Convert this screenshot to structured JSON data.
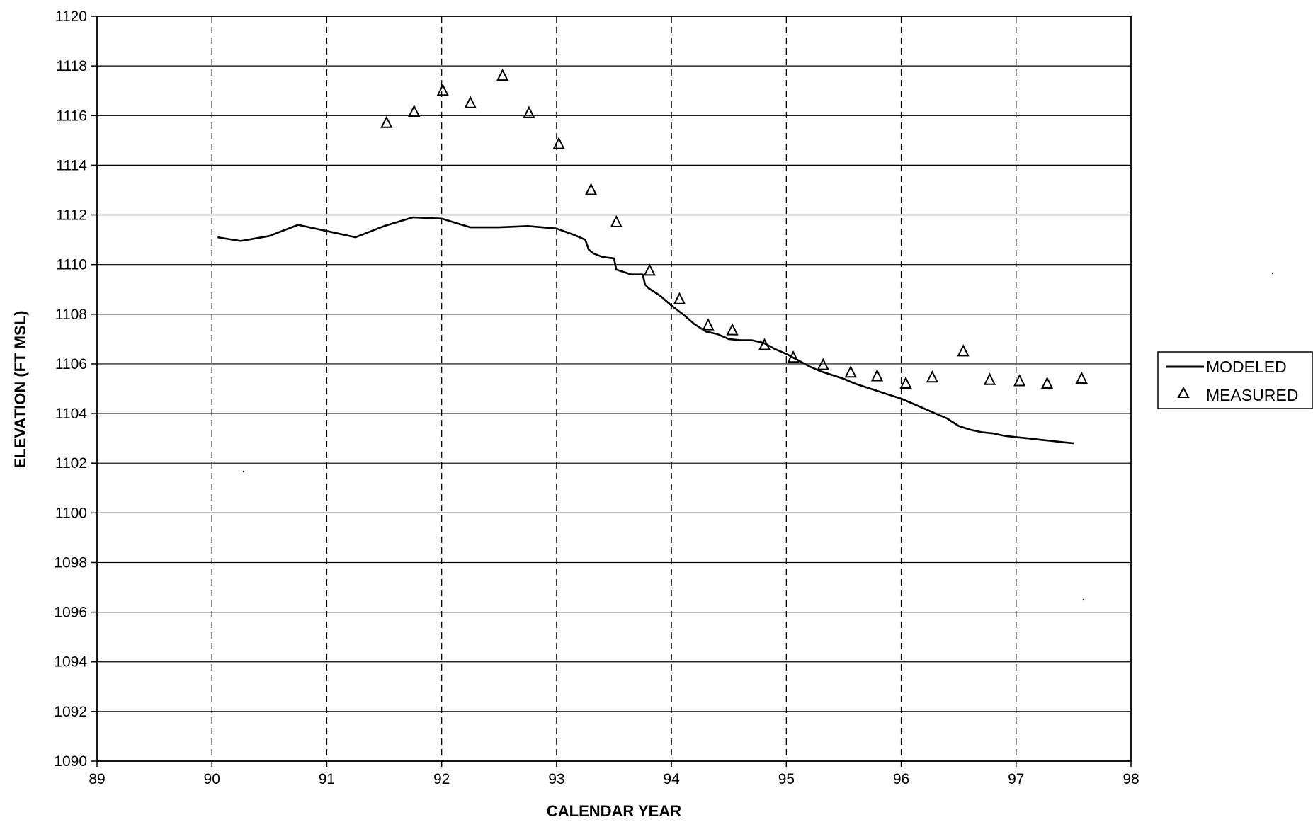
{
  "chart_data": {
    "type": "line",
    "title": "",
    "xlabel": "CALENDAR YEAR",
    "ylabel": "ELEVATION (FT MSL)",
    "xlim": [
      89,
      98
    ],
    "ylim": [
      1090,
      1120
    ],
    "x_ticks": [
      89,
      90,
      91,
      92,
      93,
      94,
      95,
      96,
      97,
      98
    ],
    "y_ticks": [
      1090,
      1092,
      1094,
      1096,
      1098,
      1100,
      1102,
      1104,
      1106,
      1108,
      1110,
      1112,
      1114,
      1116,
      1118,
      1120
    ],
    "grid": {
      "horizontal": "solid",
      "vertical": "dashed"
    },
    "legend_position": "right",
    "series": [
      {
        "name": "MODELED",
        "style": "solid line",
        "color": "#000000",
        "x": [
          90.05,
          90.25,
          90.5,
          90.75,
          91.0,
          91.25,
          91.5,
          91.75,
          92.0,
          92.25,
          92.5,
          92.75,
          93.0,
          93.15,
          93.25,
          93.28,
          93.32,
          93.4,
          93.5,
          93.52,
          93.55,
          93.65,
          93.75,
          93.77,
          93.8,
          93.9,
          94.0,
          94.1,
          94.2,
          94.3,
          94.4,
          94.5,
          94.6,
          94.7,
          94.8,
          94.9,
          95.0,
          95.1,
          95.2,
          95.3,
          95.4,
          95.5,
          95.6,
          95.7,
          95.8,
          95.9,
          96.0,
          96.1,
          96.2,
          96.3,
          96.4,
          96.5,
          96.6,
          96.7,
          96.8,
          96.9,
          97.0,
          97.1,
          97.2,
          97.3,
          97.4,
          97.5
        ],
        "y": [
          1111.1,
          1110.95,
          1111.15,
          1111.6,
          1111.35,
          1111.1,
          1111.55,
          1111.9,
          1111.85,
          1111.5,
          1111.5,
          1111.55,
          1111.45,
          1111.2,
          1111.0,
          1110.6,
          1110.45,
          1110.3,
          1110.25,
          1109.8,
          1109.75,
          1109.6,
          1109.6,
          1109.2,
          1109.05,
          1108.75,
          1108.35,
          1108.0,
          1107.6,
          1107.3,
          1107.2,
          1107.0,
          1106.95,
          1106.95,
          1106.85,
          1106.6,
          1106.4,
          1106.15,
          1105.9,
          1105.7,
          1105.55,
          1105.4,
          1105.2,
          1105.05,
          1104.9,
          1104.75,
          1104.6,
          1104.4,
          1104.2,
          1104.0,
          1103.8,
          1103.5,
          1103.35,
          1103.25,
          1103.2,
          1103.1,
          1103.05,
          1103.0,
          1102.95,
          1102.9,
          1102.85,
          1102.8
        ]
      },
      {
        "name": "MEASURED",
        "style": "open triangle markers",
        "color": "#000000",
        "x": [
          91.52,
          91.76,
          92.01,
          92.25,
          92.53,
          92.76,
          93.02,
          93.3,
          93.52,
          93.81,
          94.07,
          94.32,
          94.53,
          94.81,
          95.06,
          95.32,
          95.56,
          95.79,
          96.04,
          96.27,
          96.54,
          96.77,
          97.03,
          97.27,
          97.57
        ],
        "y": [
          1115.7,
          1116.15,
          1117.0,
          1116.5,
          1117.6,
          1116.1,
          1114.85,
          1113.0,
          1111.7,
          1109.75,
          1108.6,
          1107.55,
          1107.35,
          1106.75,
          1106.25,
          1105.95,
          1105.65,
          1105.5,
          1105.2,
          1105.45,
          1106.5,
          1105.35,
          1105.3,
          1105.2,
          1105.4
        ]
      }
    ]
  }
}
